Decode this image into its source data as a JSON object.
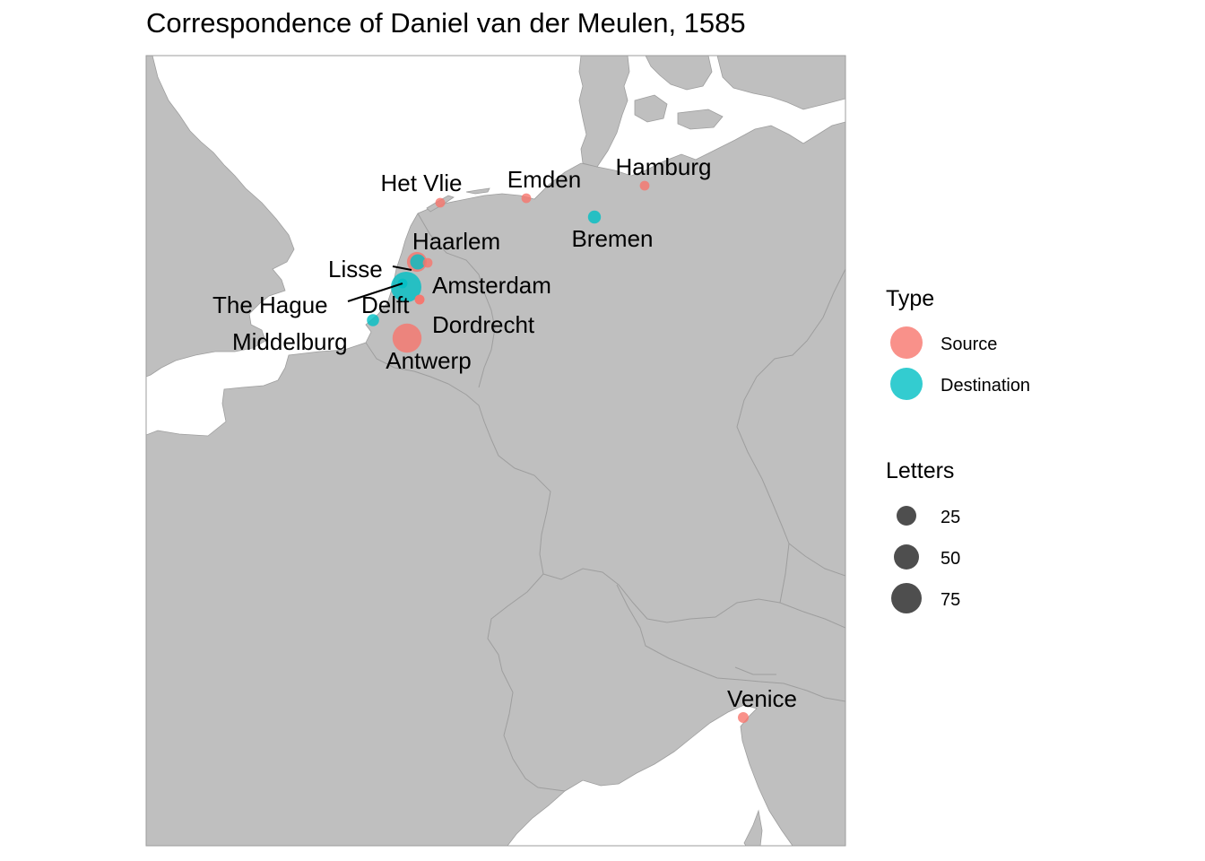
{
  "title": "Correspondence of Daniel van der Meulen, 1585",
  "colors": {
    "source": "#F8766D",
    "destination": "#00BFC4",
    "land": "#BFBFBF",
    "border": "#9E9E9E",
    "sea": "#FFFFFF",
    "size_key": "#444444"
  },
  "places": [
    {
      "name": "Het Vlie",
      "type": "Source",
      "letters": 1
    },
    {
      "name": "Emden",
      "type": "Source",
      "letters": 1
    },
    {
      "name": "Hamburg",
      "type": "Source",
      "letters": 1
    },
    {
      "name": "Bremen",
      "type": "Destination",
      "letters": 5
    },
    {
      "name": "Haarlem",
      "type": "Source",
      "letters": 25
    },
    {
      "name": "Haarlem",
      "type": "Destination",
      "letters": 10
    },
    {
      "name": "Lisse",
      "type": "Source",
      "letters": 1
    },
    {
      "name": "Amsterdam",
      "type": "Destination",
      "letters": 85
    },
    {
      "name": "The Hague",
      "type": "Destination",
      "letters": 1
    },
    {
      "name": "Delft",
      "type": "Source",
      "letters": 1
    },
    {
      "name": "Dordrecht",
      "type": "Source",
      "letters": 1
    },
    {
      "name": "Middelburg",
      "type": "Destination",
      "letters": 4
    },
    {
      "name": "Antwerp",
      "type": "Source",
      "letters": 75
    },
    {
      "name": "Venice",
      "type": "Source",
      "letters": 2
    }
  ],
  "legend": {
    "type_title": "Type",
    "type_items": [
      "Source",
      "Destination"
    ],
    "size_title": "Letters",
    "size_items": [
      25,
      50,
      75
    ]
  }
}
